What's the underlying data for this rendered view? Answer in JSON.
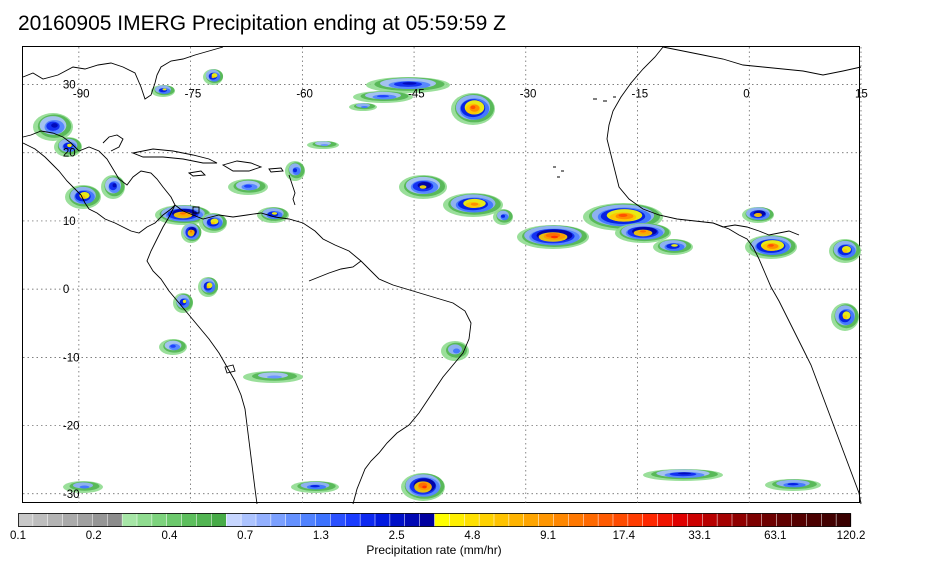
{
  "title": "20160905 IMERG Precipitation ending at 05:59:59 Z",
  "map": {
    "lon_labels": [
      "-90",
      "-75",
      "-60",
      "-45",
      "-30",
      "-15",
      "0",
      "15"
    ],
    "lat_labels": [
      "30",
      "20",
      "10",
      "0",
      "-10",
      "-20",
      "-30"
    ],
    "colors": {
      "land_outline": "#000000",
      "grid": "#555555",
      "frame": "#000000"
    }
  },
  "colorbar": {
    "label": "Precipitation rate (mm/hr)",
    "tick_labels": [
      "0.1",
      "0.2",
      "0.4",
      "0.7",
      "1.3",
      "2.5",
      "4.8",
      "9.1",
      "17.4",
      "33.1",
      "63.1",
      "120.2"
    ],
    "colors": [
      "#c8c8c8",
      "#bebebe",
      "#b4b4b4",
      "#aaaaaa",
      "#a0a0a0",
      "#969696",
      "#8c8c8c",
      "#a6e6a6",
      "#8fdc8f",
      "#7dd37d",
      "#6cc96c",
      "#5dbf5d",
      "#52b552",
      "#47ab47",
      "#c7d6ff",
      "#acc3ff",
      "#93b0ff",
      "#7ba0ff",
      "#6591ff",
      "#5082ff",
      "#3d73ff",
      "#2a50ff",
      "#1a3cff",
      "#0d28f0",
      "#0018e0",
      "#0010c8",
      "#0008b4",
      "#0000a0",
      "#ffff00",
      "#fff000",
      "#ffe100",
      "#ffd200",
      "#ffc300",
      "#ffb400",
      "#ffa500",
      "#ff9600",
      "#ff8700",
      "#ff7800",
      "#ff6900",
      "#ff5a00",
      "#ff4b00",
      "#ff3c00",
      "#ff2800",
      "#f01400",
      "#e00000",
      "#cc0000",
      "#b80000",
      "#a40000",
      "#900000",
      "#7d0000",
      "#6e0000",
      "#600000",
      "#550000",
      "#4b0000",
      "#420000",
      "#3a0000"
    ]
  }
}
